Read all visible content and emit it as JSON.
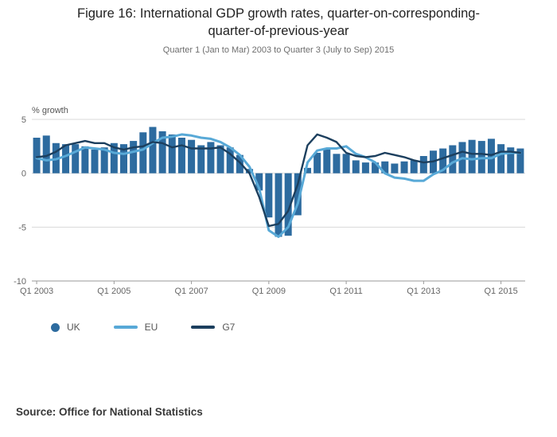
{
  "title": "Figure 16: International GDP growth rates, quarter-on-corresponding-quarter-of-previous-year",
  "subtitle": "Quarter 1 (Jan to Mar) 2003 to Quarter 3 (July to Sep) 2015",
  "source": "Source: Office for National Statistics",
  "legend": [
    {
      "label": "UK",
      "marker": "dot",
      "color": "#2d6b9f"
    },
    {
      "label": "EU",
      "marker": "line",
      "color": "#58a9d7"
    },
    {
      "label": "G7",
      "marker": "line",
      "color": "#1c3f5e"
    }
  ],
  "chart_data": {
    "type": "bar+line",
    "title": "Figure 16: International GDP growth rates, quarter-on-corresponding-quarter-of-previous-year",
    "xlabel": "",
    "ylabel": "% growth",
    "ylim": [
      -10,
      5
    ],
    "yticks": [
      5,
      0,
      -5,
      -10
    ],
    "grid": true,
    "legend_position": "bottom",
    "colors": {
      "grid": "#d8d8d8",
      "axis": "#9a9a9a",
      "tick_text": "#666666",
      "ylabel_text": "#555555"
    },
    "xticks": [
      {
        "index": 0,
        "label": "Q1 2003"
      },
      {
        "index": 8,
        "label": "Q1 2005"
      },
      {
        "index": 16,
        "label": "Q1 2007"
      },
      {
        "index": 24,
        "label": "Q1 2009"
      },
      {
        "index": 32,
        "label": "Q1 2011"
      },
      {
        "index": 40,
        "label": "Q1 2013"
      },
      {
        "index": 48,
        "label": "Q1 2015"
      }
    ],
    "x": [
      "Q1 2003",
      "Q2 2003",
      "Q3 2003",
      "Q4 2003",
      "Q1 2004",
      "Q2 2004",
      "Q3 2004",
      "Q4 2004",
      "Q1 2005",
      "Q2 2005",
      "Q3 2005",
      "Q4 2005",
      "Q1 2006",
      "Q2 2006",
      "Q3 2006",
      "Q4 2006",
      "Q1 2007",
      "Q2 2007",
      "Q3 2007",
      "Q4 2007",
      "Q1 2008",
      "Q2 2008",
      "Q3 2008",
      "Q4 2008",
      "Q1 2009",
      "Q2 2009",
      "Q3 2009",
      "Q4 2009",
      "Q1 2010",
      "Q2 2010",
      "Q3 2010",
      "Q4 2010",
      "Q1 2011",
      "Q2 2011",
      "Q3 2011",
      "Q4 2011",
      "Q1 2012",
      "Q2 2012",
      "Q3 2012",
      "Q4 2012",
      "Q1 2013",
      "Q2 2013",
      "Q3 2013",
      "Q4 2013",
      "Q1 2014",
      "Q2 2014",
      "Q3 2014",
      "Q4 2014",
      "Q1 2015",
      "Q2 2015",
      "Q3 2015"
    ],
    "series": [
      {
        "name": "UK",
        "type": "bar",
        "color": "#2d6b9f",
        "values": [
          3.3,
          3.5,
          2.8,
          2.7,
          2.7,
          2.5,
          2.2,
          2.4,
          2.8,
          2.7,
          3.0,
          3.8,
          4.3,
          3.9,
          3.6,
          3.3,
          3.1,
          2.6,
          2.9,
          2.6,
          2.4,
          1.7,
          0.4,
          -1.6,
          -4.1,
          -5.9,
          -5.8,
          -3.9,
          0.5,
          1.9,
          2.2,
          1.8,
          1.8,
          1.2,
          1.0,
          1.0,
          1.1,
          0.9,
          1.1,
          1.2,
          1.6,
          2.1,
          2.3,
          2.6,
          2.9,
          3.1,
          3.0,
          3.2,
          2.7,
          2.4,
          2.3
        ]
      },
      {
        "name": "EU",
        "type": "line",
        "color": "#58a9d7",
        "values": [
          1.4,
          1.2,
          1.3,
          1.6,
          2.0,
          2.4,
          2.3,
          2.2,
          1.9,
          1.8,
          2.0,
          2.2,
          2.8,
          3.3,
          3.4,
          3.6,
          3.5,
          3.3,
          3.2,
          2.9,
          2.4,
          1.7,
          0.6,
          -1.4,
          -5.3,
          -5.9,
          -5.0,
          -2.8,
          1.0,
          2.1,
          2.3,
          2.3,
          2.5,
          1.8,
          1.5,
          1.0,
          0.0,
          -0.4,
          -0.5,
          -0.7,
          -0.7,
          -0.1,
          0.3,
          1.0,
          1.4,
          1.3,
          1.4,
          1.4,
          1.8,
          1.9,
          1.9
        ]
      },
      {
        "name": "G7",
        "type": "line",
        "color": "#1c3f5e",
        "values": [
          1.5,
          1.6,
          2.0,
          2.6,
          2.8,
          3.0,
          2.8,
          2.8,
          2.4,
          2.2,
          2.4,
          2.5,
          2.9,
          2.8,
          2.4,
          2.6,
          2.3,
          2.3,
          2.3,
          2.4,
          1.8,
          1.0,
          0.0,
          -2.2,
          -4.9,
          -4.7,
          -3.5,
          -1.0,
          2.6,
          3.6,
          3.3,
          2.9,
          1.9,
          1.6,
          1.5,
          1.6,
          1.9,
          1.7,
          1.5,
          1.2,
          1.0,
          1.1,
          1.4,
          1.7,
          2.0,
          1.8,
          1.8,
          1.7,
          2.0,
          2.0,
          1.9
        ]
      }
    ]
  }
}
